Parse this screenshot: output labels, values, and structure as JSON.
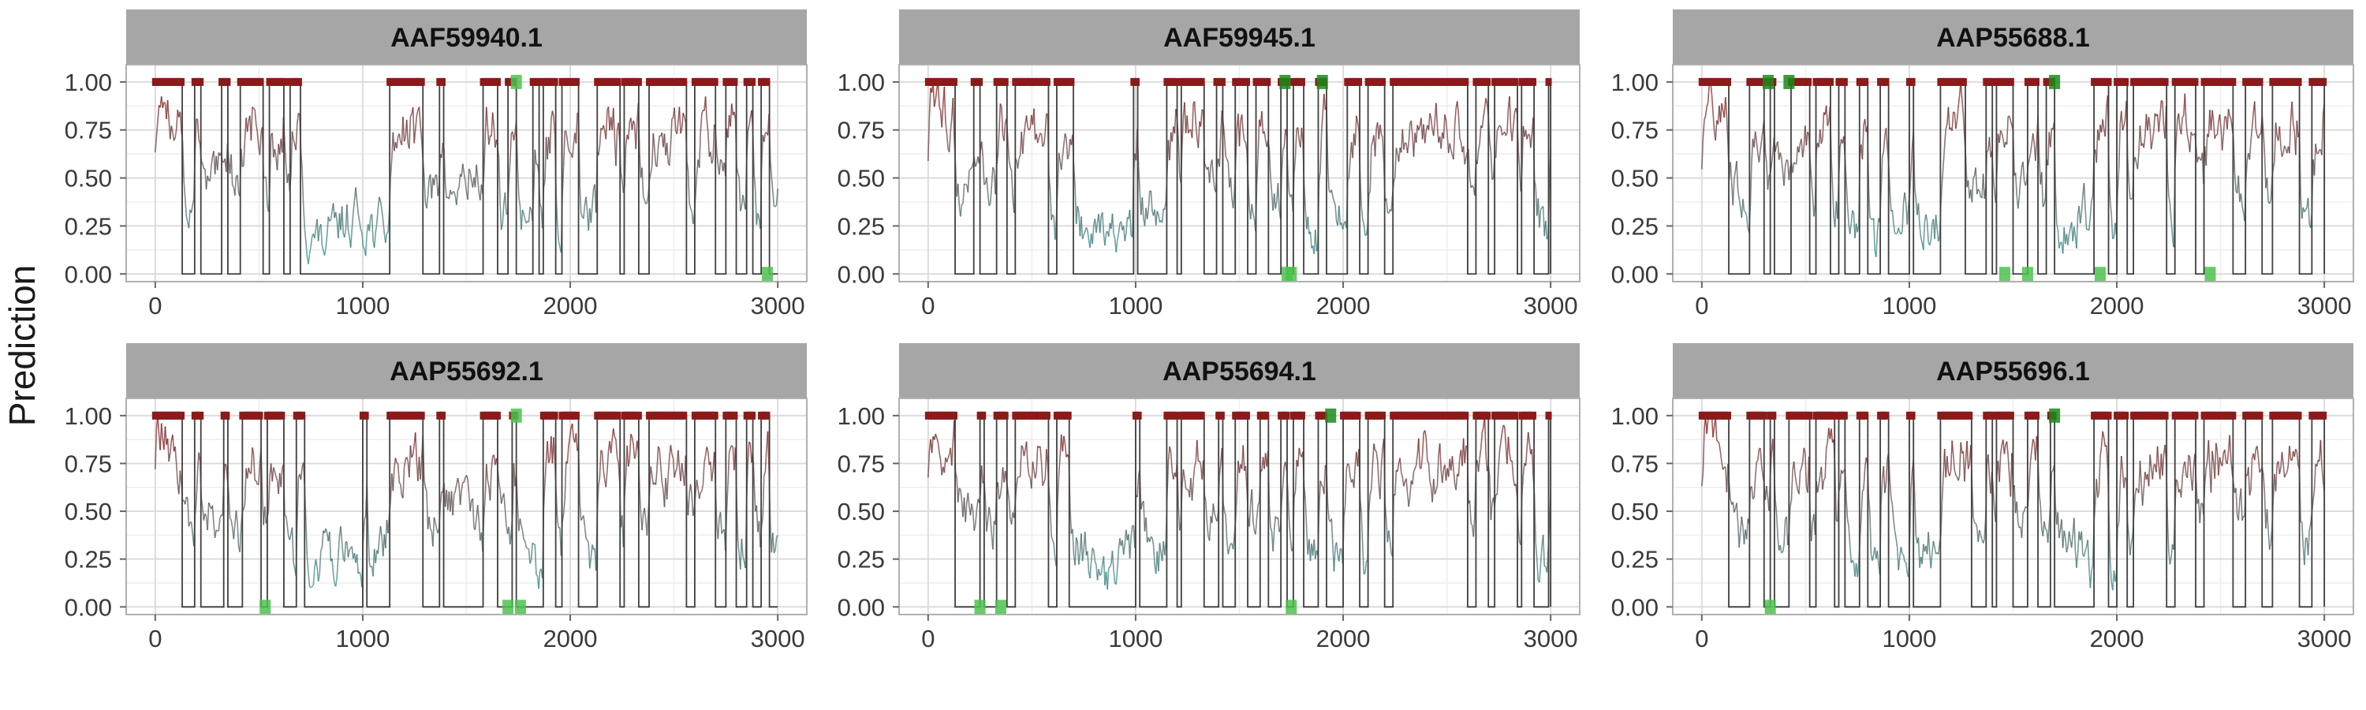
{
  "chart_data": {
    "type": "line",
    "layout": "facet_grid_2x3",
    "ylabel": "Prediction",
    "xlabel": "",
    "x_range": [
      0,
      3000
    ],
    "xlim": [
      -140,
      3140
    ],
    "ylim": [
      -0.04,
      1.09
    ],
    "x_ticks": [
      0,
      1000,
      2000,
      3000
    ],
    "x_tick_labels": [
      "0",
      "1000",
      "2000",
      "3000"
    ],
    "y_ticks": [
      0,
      0.25,
      0.5,
      0.75,
      1
    ],
    "y_tick_labels": [
      "0.00",
      "0.25",
      "0.50",
      "0.75",
      "1.00"
    ],
    "grid": true,
    "legend": "none",
    "colors": {
      "strip_background": "#a6a6a6",
      "binary_line": "#3f3f3f",
      "high_prediction": "#8b1a1a",
      "low_prediction": "#2f9c9c",
      "positive_marker": "#4cc24c",
      "positive_marker_dark": "#1a8a1a",
      "grid": "#dcdcdc",
      "panel_border": "#b0b0b0"
    },
    "continuous_series_description": "prediction score per residue, 0.00-1.00",
    "panels": [
      {
        "title": "AAF59940.1",
        "peaks_above_threshold": [
          [
            0,
            130
          ],
          [
            190,
            220
          ],
          [
            320,
            350
          ],
          [
            410,
            520
          ],
          [
            550,
            620
          ],
          [
            650,
            700
          ],
          [
            1130,
            1290
          ],
          [
            1370,
            1390
          ],
          [
            1580,
            1650
          ],
          [
            1700,
            1740
          ],
          [
            1820,
            1850
          ],
          [
            1870,
            1930
          ],
          [
            1960,
            2040
          ],
          [
            2130,
            2240
          ],
          [
            2260,
            2330
          ],
          [
            2380,
            2560
          ],
          [
            2600,
            2700
          ],
          [
            2750,
            2800
          ],
          [
            2850,
            2880
          ],
          [
            2920,
            2960
          ]
        ],
        "green_marks": [
          [
            1740,
            1.0
          ],
          [
            2950,
            0.0
          ]
        ]
      },
      {
        "title": "AAF59945.1",
        "peaks_above_threshold": [
          [
            0,
            130
          ],
          [
            220,
            250
          ],
          [
            330,
            380
          ],
          [
            420,
            580
          ],
          [
            620,
            700
          ],
          [
            990,
            1010
          ],
          [
            1150,
            1200
          ],
          [
            1220,
            1330
          ],
          [
            1390,
            1420
          ],
          [
            1480,
            1540
          ],
          [
            1580,
            1640
          ],
          [
            1700,
            1730
          ],
          [
            1760,
            1810
          ],
          [
            1880,
            1920
          ],
          [
            2020,
            2080
          ],
          [
            2120,
            2200
          ],
          [
            2240,
            2600
          ],
          [
            2640,
            2700
          ],
          [
            2730,
            2840
          ],
          [
            2860,
            2920
          ],
          [
            2990,
            3000
          ]
        ],
        "green_marks": [
          [
            1720,
            1.0
          ],
          [
            1730,
            0.0
          ],
          [
            1750,
            0.0
          ],
          [
            1900,
            1.0
          ]
        ]
      },
      {
        "title": "AAP55688.1",
        "peaks_above_threshold": [
          [
            0,
            130
          ],
          [
            230,
            300
          ],
          [
            330,
            350
          ],
          [
            430,
            520
          ],
          [
            550,
            620
          ],
          [
            660,
            690
          ],
          [
            760,
            800
          ],
          [
            860,
            900
          ],
          [
            1000,
            1020
          ],
          [
            1150,
            1270
          ],
          [
            1370,
            1400
          ],
          [
            1420,
            1500
          ],
          [
            1570,
            1620
          ],
          [
            1660,
            1700
          ],
          [
            1890,
            1960
          ],
          [
            2000,
            2050
          ],
          [
            2080,
            2240
          ],
          [
            2280,
            2380
          ],
          [
            2420,
            2560
          ],
          [
            2620,
            2700
          ],
          [
            2750,
            2880
          ],
          [
            2940,
            3000
          ]
        ],
        "green_marks": [
          [
            320,
            1.0
          ],
          [
            420,
            1.0
          ],
          [
            1460,
            0.0
          ],
          [
            1570,
            0.0
          ],
          [
            1700,
            1.0
          ],
          [
            1920,
            0.0
          ],
          [
            2450,
            0.0
          ]
        ]
      },
      {
        "title": "AAP55692.1",
        "peaks_above_threshold": [
          [
            0,
            130
          ],
          [
            190,
            220
          ],
          [
            330,
            350
          ],
          [
            420,
            510
          ],
          [
            540,
            620
          ],
          [
            680,
            720
          ],
          [
            1000,
            1020
          ],
          [
            1130,
            1290
          ],
          [
            1370,
            1390
          ],
          [
            1580,
            1650
          ],
          [
            1720,
            1740
          ],
          [
            1870,
            1930
          ],
          [
            1960,
            2040
          ],
          [
            2130,
            2240
          ],
          [
            2260,
            2330
          ],
          [
            2380,
            2560
          ],
          [
            2600,
            2700
          ],
          [
            2750,
            2800
          ],
          [
            2850,
            2880
          ],
          [
            2920,
            2960
          ]
        ],
        "green_marks": [
          [
            530,
            0.0
          ],
          [
            1740,
            1.0
          ],
          [
            1700,
            0.0
          ],
          [
            1760,
            0.0
          ]
        ]
      },
      {
        "title": "AAP55694.1",
        "peaks_above_threshold": [
          [
            0,
            130
          ],
          [
            250,
            270
          ],
          [
            330,
            380
          ],
          [
            420,
            580
          ],
          [
            620,
            680
          ],
          [
            1000,
            1020
          ],
          [
            1150,
            1200
          ],
          [
            1220,
            1330
          ],
          [
            1400,
            1420
          ],
          [
            1480,
            1540
          ],
          [
            1600,
            1640
          ],
          [
            1700,
            1730
          ],
          [
            1760,
            1810
          ],
          [
            1880,
            1920
          ],
          [
            2000,
            2080
          ],
          [
            2120,
            2200
          ],
          [
            2240,
            2600
          ],
          [
            2640,
            2700
          ],
          [
            2730,
            2840
          ],
          [
            2860,
            2920
          ],
          [
            2990,
            3000
          ]
        ],
        "green_marks": [
          [
            250,
            0.0
          ],
          [
            350,
            0.0
          ],
          [
            1750,
            0.0
          ],
          [
            1940,
            1.0
          ]
        ]
      },
      {
        "title": "AAP55696.1",
        "peaks_above_threshold": [
          [
            0,
            130
          ],
          [
            230,
            300
          ],
          [
            330,
            350
          ],
          [
            420,
            520
          ],
          [
            550,
            640
          ],
          [
            660,
            690
          ],
          [
            760,
            800
          ],
          [
            860,
            900
          ],
          [
            1000,
            1020
          ],
          [
            1150,
            1300
          ],
          [
            1370,
            1400
          ],
          [
            1420,
            1500
          ],
          [
            1570,
            1620
          ],
          [
            1680,
            1700
          ],
          [
            1890,
            1960
          ],
          [
            2000,
            2050
          ],
          [
            2080,
            2240
          ],
          [
            2280,
            2380
          ],
          [
            2420,
            2560
          ],
          [
            2620,
            2700
          ],
          [
            2750,
            2880
          ],
          [
            2940,
            3000
          ]
        ],
        "green_marks": [
          [
            330,
            0.0
          ],
          [
            1700,
            1.0
          ]
        ]
      }
    ]
  }
}
